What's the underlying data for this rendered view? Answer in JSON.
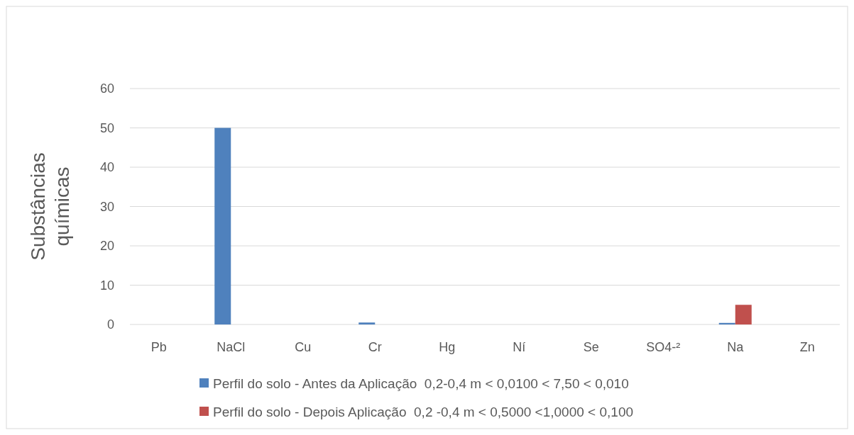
{
  "chart_data": {
    "type": "bar",
    "ylabel": "Substâncias químicas",
    "categories": [
      "Pb",
      "NaCl",
      "Cu",
      "Cr",
      "Hg",
      "Ní",
      "Se",
      "SO4-²",
      "Na",
      "Zn"
    ],
    "series": [
      {
        "name": "Perfil do solo - Antes da Aplicação  0,2-0,4 m < 0,0100 < 7,50 < 0,010",
        "color": "#4f81bd",
        "values": [
          null,
          50,
          null,
          0.5,
          null,
          null,
          null,
          null,
          0.4,
          null
        ]
      },
      {
        "name": "Perfil do solo - Depois Aplicação  0,2 -0,4 m < 0,5000 <1,0000 < 0,100",
        "color": "#c0504d",
        "values": [
          null,
          null,
          null,
          null,
          null,
          null,
          null,
          null,
          5,
          null
        ]
      }
    ],
    "ylim": [
      0,
      60
    ],
    "yticks": [
      0,
      10,
      20,
      30,
      40,
      50,
      60
    ],
    "grid": "y",
    "legend": "bottom"
  }
}
